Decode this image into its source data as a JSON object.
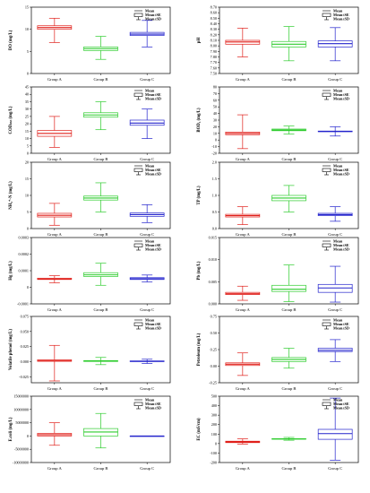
{
  "colors": {
    "group_a": "#e0201b",
    "group_b": "#2ecc2e",
    "group_c": "#2222cc"
  },
  "legend": [
    "Mean",
    "Mean±SE",
    "Mean±SD"
  ],
  "chart_data": [
    {
      "type": "box",
      "ylabel": "DO (mg/L)",
      "categories": [
        "Group A",
        "Group B",
        "Group C"
      ],
      "yticks": [
        "0",
        "5",
        "10",
        "15"
      ],
      "ylim": [
        0,
        15
      ],
      "series": [
        {
          "category": "Group A",
          "mean": 10.4,
          "se_low": 10.0,
          "se_high": 10.8,
          "sd_low": 7.0,
          "sd_high": 12.5
        },
        {
          "category": "Group B",
          "mean": 5.6,
          "se_low": 5.2,
          "se_high": 6.0,
          "sd_low": 3.2,
          "sd_high": 8.4
        },
        {
          "category": "Group C",
          "mean": 8.9,
          "se_low": 8.6,
          "se_high": 9.3,
          "sd_low": 6.0,
          "sd_high": 12.0
        }
      ]
    },
    {
      "type": "box",
      "ylabel": "pH",
      "categories": [
        "Group A",
        "Group B",
        "Group C"
      ],
      "yticks": [
        "7.50",
        "7.60",
        "7.70",
        "7.80",
        "7.90",
        "8.00",
        "8.10",
        "8.20",
        "8.30",
        "8.40",
        "8.50",
        "8.60",
        "8.70"
      ],
      "ylim": [
        7.5,
        8.7
      ],
      "series": [
        {
          "category": "Group A",
          "mean": 8.07,
          "se_low": 8.03,
          "se_high": 8.1,
          "sd_low": 7.8,
          "sd_high": 8.32
        },
        {
          "category": "Group B",
          "mean": 8.03,
          "se_low": 7.98,
          "se_high": 8.08,
          "sd_low": 7.73,
          "sd_high": 8.35
        },
        {
          "category": "Group C",
          "mean": 8.04,
          "se_low": 7.98,
          "se_high": 8.09,
          "sd_low": 7.73,
          "sd_high": 8.33
        }
      ]
    },
    {
      "type": "box",
      "ylabel": "CODₘₙ (mg/L)",
      "categories": [
        "Group A",
        "Group B",
        "Group C"
      ],
      "yticks": [
        "0",
        "5",
        "10",
        "15",
        "20",
        "25",
        "30",
        "35",
        "40",
        "45"
      ],
      "ylim": [
        0,
        45
      ],
      "series": [
        {
          "category": "Group A",
          "mean": 13.5,
          "se_low": 11.5,
          "se_high": 15.5,
          "sd_low": 4.0,
          "sd_high": 25.0
        },
        {
          "category": "Group B",
          "mean": 26.0,
          "se_low": 24.5,
          "se_high": 27.5,
          "sd_low": 16.0,
          "sd_high": 35.0
        },
        {
          "category": "Group C",
          "mean": 20.5,
          "se_low": 19.0,
          "se_high": 22.5,
          "sd_low": 10.0,
          "sd_high": 30.0
        }
      ]
    },
    {
      "type": "box",
      "ylabel": "BOD₅ (mg/L)",
      "categories": [
        "Group A",
        "Group B",
        "Group C"
      ],
      "yticks": [
        "-20",
        "-10",
        "0",
        "10",
        "20",
        "30",
        "40",
        "50",
        "60",
        "70",
        "80"
      ],
      "ylim": [
        -20,
        80
      ],
      "series": [
        {
          "category": "Group A",
          "mean": 10.0,
          "se_low": 8.0,
          "se_high": 12.0,
          "sd_low": -13.0,
          "sd_high": 38.0
        },
        {
          "category": "Group B",
          "mean": 15.0,
          "se_low": 14.0,
          "se_high": 16.5,
          "sd_low": 9.0,
          "sd_high": 21.0
        },
        {
          "category": "Group C",
          "mean": 13.0,
          "se_low": 12.5,
          "se_high": 13.5,
          "sd_low": 6.0,
          "sd_high": 20.0
        }
      ]
    },
    {
      "type": "box",
      "ylabel": "NH₄⁺-N (mg/L)",
      "categories": [
        "Group A",
        "Group B",
        "Group C"
      ],
      "yticks": [
        "0",
        "5",
        "10",
        "15",
        "20"
      ],
      "ylim": [
        0,
        20
      ],
      "series": [
        {
          "category": "Group A",
          "mean": 4.0,
          "se_low": 3.5,
          "se_high": 4.6,
          "sd_low": 1.0,
          "sd_high": 7.6
        },
        {
          "category": "Group B",
          "mean": 9.2,
          "se_low": 8.6,
          "se_high": 9.8,
          "sd_low": 5.0,
          "sd_high": 13.8
        },
        {
          "category": "Group C",
          "mean": 4.2,
          "se_low": 3.7,
          "se_high": 4.7,
          "sd_low": 1.8,
          "sd_high": 7.2
        }
      ]
    },
    {
      "type": "box",
      "ylabel": "TP (mg/L)",
      "categories": [
        "Group A",
        "Group B",
        "Group C"
      ],
      "yticks": [
        "0.0",
        "0.5",
        "1.0",
        "1.5",
        "2.0"
      ],
      "ylim": [
        0,
        2.0
      ],
      "series": [
        {
          "category": "Group A",
          "mean": 0.39,
          "se_low": 0.35,
          "se_high": 0.43,
          "sd_low": 0.12,
          "sd_high": 0.66
        },
        {
          "category": "Group B",
          "mean": 0.92,
          "se_low": 0.84,
          "se_high": 1.0,
          "sd_low": 0.5,
          "sd_high": 1.3
        },
        {
          "category": "Group C",
          "mean": 0.42,
          "se_low": 0.39,
          "se_high": 0.46,
          "sd_low": 0.22,
          "sd_high": 0.66
        }
      ]
    },
    {
      "type": "box",
      "ylabel": "Hg (mg/L)",
      "categories": [
        "Group A",
        "Group B",
        "Group C"
      ],
      "yticks": [
        "-0.0001",
        "0",
        "0.0001",
        "0.0002",
        "0.0003"
      ],
      "ylim": [
        -0.0001,
        0.0003
      ],
      "series": [
        {
          "category": "Group A",
          "mean": 5e-05,
          "se_low": 4.7e-05,
          "se_high": 5.5e-05,
          "sd_low": 2.7e-05,
          "sd_high": 7e-05
        },
        {
          "category": "Group B",
          "mean": 7.5e-05,
          "se_low": 6.5e-05,
          "se_high": 8.8e-05,
          "sd_low": 1.2e-05,
          "sd_high": 0.000145
        },
        {
          "category": "Group C",
          "mean": 5.2e-05,
          "se_low": 4.7e-05,
          "se_high": 5.8e-05,
          "sd_low": 3.2e-05,
          "sd_high": 7.4e-05
        }
      ]
    },
    {
      "type": "box",
      "ylabel": "Pb (mg/L)",
      "categories": [
        "Group A",
        "Group B",
        "Group C"
      ],
      "yticks": [
        "0.000",
        "0.005",
        "0.010",
        "0.015"
      ],
      "ylim": [
        0,
        0.015
      ],
      "series": [
        {
          "category": "Group A",
          "mean": 0.0023,
          "se_low": 0.0021,
          "se_high": 0.0026,
          "sd_low": 0.0008,
          "sd_high": 0.004
        },
        {
          "category": "Group B",
          "mean": 0.0033,
          "se_low": 0.0028,
          "se_high": 0.0042,
          "sd_low": 0.0005,
          "sd_high": 0.0088
        },
        {
          "category": "Group C",
          "mean": 0.0036,
          "se_low": 0.0026,
          "se_high": 0.0044,
          "sd_low": 0.0004,
          "sd_high": 0.0085
        }
      ]
    },
    {
      "type": "box",
      "ylabel": "Volatile phenol (mg/L)",
      "categories": [
        "Group A",
        "Group B",
        "Group C"
      ],
      "yticks": [
        "-0.025",
        "0.000",
        "0.025",
        "0.050",
        "0.075"
      ],
      "ylim": [
        -0.035,
        0.075
      ],
      "series": [
        {
          "category": "Group A",
          "mean": 0.0018,
          "se_low": 0.0005,
          "se_high": 0.003,
          "sd_low": -0.032,
          "sd_high": 0.027
        },
        {
          "category": "Group B",
          "mean": 0.001,
          "se_low": 0.0003,
          "se_high": 0.0018,
          "sd_low": -0.005,
          "sd_high": 0.007
        },
        {
          "category": "Group C",
          "mean": 0.0006,
          "se_low": 0.0001,
          "se_high": 0.0012,
          "sd_low": -0.003,
          "sd_high": 0.004
        }
      ]
    },
    {
      "type": "box",
      "ylabel": "Petroleum (mg/L)",
      "categories": [
        "Group A",
        "Group B",
        "Group C"
      ],
      "yticks": [
        "-0.25",
        "0.00",
        "0.25",
        "0.50",
        "0.75"
      ],
      "ylim": [
        -0.25,
        0.75
      ],
      "series": [
        {
          "category": "Group A",
          "mean": 0.03,
          "se_low": 0.01,
          "se_high": 0.05,
          "sd_low": -0.14,
          "sd_high": 0.2
        },
        {
          "category": "Group B",
          "mean": 0.1,
          "se_low": 0.07,
          "se_high": 0.13,
          "sd_low": -0.03,
          "sd_high": 0.27
        },
        {
          "category": "Group C",
          "mean": 0.24,
          "se_low": 0.22,
          "se_high": 0.27,
          "sd_low": 0.07,
          "sd_high": 0.4
        }
      ]
    },
    {
      "type": "box",
      "ylabel": "E.coli (mg/L)",
      "categories": [
        "Group A",
        "Group B",
        "Group C"
      ],
      "yticks": [
        "-10000000",
        "-5000000",
        "0",
        "5000000",
        "10000000",
        "15000000"
      ],
      "ylim": [
        -10000000,
        15000000
      ],
      "series": [
        {
          "category": "Group A",
          "mean": 500000,
          "se_low": 0,
          "se_high": 1000000,
          "sd_low": -3500000,
          "sd_high": 5000000
        },
        {
          "category": "Group B",
          "mean": 1500000,
          "se_low": 0,
          "se_high": 2800000,
          "sd_low": -4500000,
          "sd_high": 8500000
        },
        {
          "category": "Group C",
          "mean": 0,
          "se_low": 0,
          "se_high": 0,
          "sd_low": 0,
          "sd_high": 0
        }
      ]
    },
    {
      "type": "box",
      "ylabel": "EC (mS/cm)",
      "categories": [
        "Group A",
        "Group B",
        "Group C"
      ],
      "yticks": [
        "-200",
        "-100",
        "0",
        "100",
        "200",
        "300",
        "400",
        "500"
      ],
      "ylim": [
        -200,
        500
      ],
      "series": [
        {
          "category": "Group A",
          "mean": 18,
          "se_low": 10,
          "se_high": 25,
          "sd_low": -5,
          "sd_high": 50
        },
        {
          "category": "Group B",
          "mean": 49,
          "se_low": 46,
          "se_high": 52,
          "sd_low": 35,
          "sd_high": 65
        },
        {
          "category": "Group C",
          "mean": 105,
          "se_low": 45,
          "se_high": 150,
          "sd_low": -175,
          "sd_high": 480
        }
      ]
    }
  ]
}
